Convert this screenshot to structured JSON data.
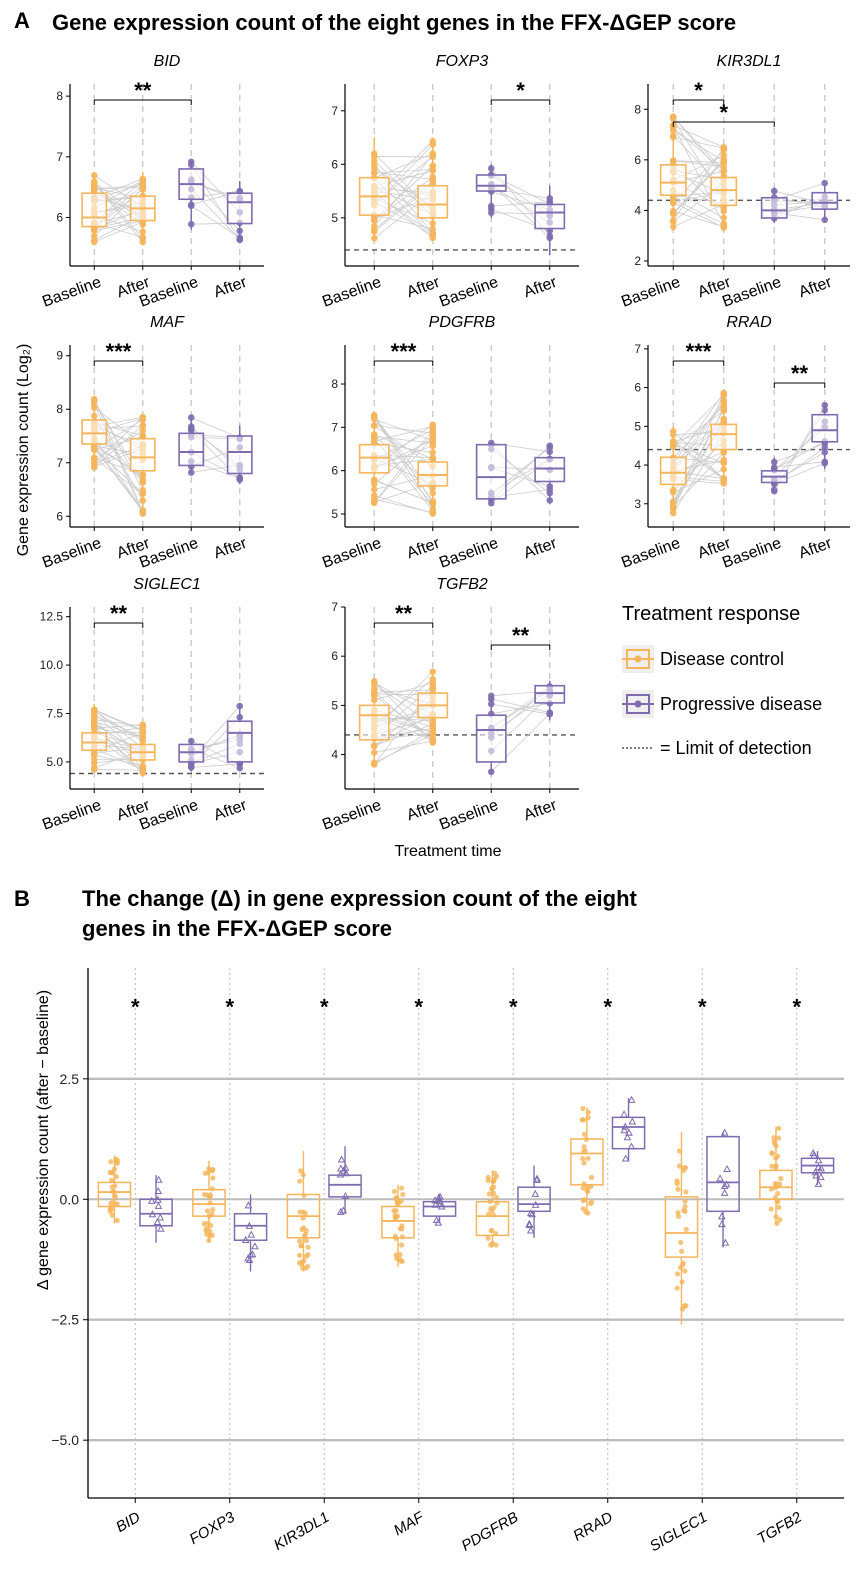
{
  "colors": {
    "disease_control": "#F5B55A",
    "progressive_disease": "#7E6BB0",
    "line": "#cccccc",
    "grid": "#bdbdbd"
  },
  "panel_a": {
    "letter": "A",
    "title": "Gene expression count of the eight genes in the FFX-ΔGEP score",
    "ylabel": "Gene expression count (Log₂)",
    "xlabel": "Treatment time",
    "legend": {
      "title": "Treatment response",
      "dc": "Disease control",
      "pd": "Progressive disease",
      "lod": "= Limit of detection"
    }
  },
  "panel_b": {
    "letter": "B",
    "title_line1": "The change (Δ) in gene expression count of the eight",
    "title_line2": "genes in the FFX-ΔGEP score",
    "ylabel": "Δ gene expression count (after − baseline)"
  },
  "chart_data": [
    {
      "type": "box",
      "panel": "A",
      "categories": [
        "Baseline",
        "After",
        "Baseline",
        "After"
      ],
      "groups": [
        "Disease control",
        "Disease control",
        "Progressive disease",
        "Progressive disease"
      ],
      "genes": [
        {
          "name": "BID",
          "ylim": [
            5.2,
            8.2
          ],
          "ticks": [
            "6",
            "7",
            "8"
          ],
          "tick_values": [
            6,
            7,
            8
          ],
          "lod": null,
          "boxes": [
            [
              5.55,
              5.85,
              6.0,
              6.4,
              6.75
            ],
            [
              5.55,
              5.95,
              6.15,
              6.35,
              6.75
            ],
            [
              5.8,
              6.3,
              6.55,
              6.8,
              6.95
            ],
            [
              5.6,
              5.9,
              6.25,
              6.4,
              6.6
            ]
          ],
          "sig": [
            {
              "from": 0,
              "to": 2,
              "label": "**"
            }
          ]
        },
        {
          "name": "FOXP3",
          "ylim": [
            4.1,
            7.5
          ],
          "ticks": [
            "5",
            "6",
            "7"
          ],
          "tick_values": [
            5,
            6,
            7
          ],
          "lod": 4.4,
          "boxes": [
            [
              4.6,
              5.05,
              5.4,
              5.75,
              6.5
            ],
            [
              4.6,
              5.0,
              5.25,
              5.6,
              6.5
            ],
            [
              5.0,
              5.5,
              5.6,
              5.8,
              6.0
            ],
            [
              4.3,
              4.8,
              5.1,
              5.25,
              5.6
            ]
          ],
          "sig": [
            {
              "from": 2,
              "to": 3,
              "label": "*"
            }
          ]
        },
        {
          "name": "KIR3DL1",
          "ylim": [
            1.8,
            9.0
          ],
          "ticks": [
            "2",
            "4",
            "6",
            "8"
          ],
          "tick_values": [
            2,
            4,
            6,
            8
          ],
          "lod": 4.4,
          "boxes": [
            [
              3.2,
              4.6,
              5.1,
              5.8,
              7.8
            ],
            [
              3.3,
              4.2,
              4.8,
              5.3,
              6.5
            ],
            [
              3.5,
              3.7,
              4.0,
              4.5,
              4.9
            ],
            [
              3.6,
              4.05,
              4.3,
              4.7,
              5.1
            ]
          ],
          "sig": [
            {
              "from": 0,
              "to": 1,
              "label": "*"
            },
            {
              "from": 0,
              "to": 2,
              "label": "*"
            }
          ]
        },
        {
          "name": "MAF",
          "ylim": [
            5.8,
            9.2
          ],
          "ticks": [
            "6",
            "7",
            "8",
            "9"
          ],
          "tick_values": [
            6,
            7,
            8,
            9
          ],
          "lod": null,
          "boxes": [
            [
              6.9,
              7.35,
              7.55,
              7.8,
              8.2
            ],
            [
              6.0,
              6.85,
              7.1,
              7.45,
              7.9
            ],
            [
              6.8,
              6.95,
              7.2,
              7.55,
              7.9
            ],
            [
              6.6,
              6.8,
              7.2,
              7.5,
              7.7
            ]
          ],
          "sig": [
            {
              "from": 0,
              "to": 1,
              "label": "***"
            }
          ]
        },
        {
          "name": "PDGFRB",
          "ylim": [
            4.7,
            8.9
          ],
          "ticks": [
            "5",
            "6",
            "7",
            "8"
          ],
          "tick_values": [
            5,
            6,
            7,
            8
          ],
          "lod": null,
          "boxes": [
            [
              5.2,
              5.95,
              6.3,
              6.6,
              7.3
            ],
            [
              5.0,
              5.65,
              5.9,
              6.2,
              7.1
            ],
            [
              5.2,
              5.35,
              5.85,
              6.6,
              6.65
            ],
            [
              5.3,
              5.75,
              6.05,
              6.3,
              6.6
            ]
          ],
          "sig": [
            {
              "from": 0,
              "to": 1,
              "label": "***"
            }
          ]
        },
        {
          "name": "RRAD",
          "ylim": [
            2.4,
            7.1
          ],
          "ticks": [
            "3",
            "4",
            "5",
            "6",
            "7"
          ],
          "tick_values": [
            3,
            4,
            5,
            6,
            7
          ],
          "lod": 4.4,
          "boxes": [
            [
              2.7,
              3.5,
              3.8,
              4.2,
              5.0
            ],
            [
              3.5,
              4.4,
              4.8,
              5.05,
              5.9
            ],
            [
              3.3,
              3.55,
              3.7,
              3.85,
              4.2
            ],
            [
              3.9,
              4.6,
              4.9,
              5.3,
              5.6
            ]
          ],
          "sig": [
            {
              "from": 0,
              "to": 1,
              "label": "***"
            },
            {
              "from": 2,
              "to": 3,
              "label": "**"
            }
          ]
        },
        {
          "name": "SIGLEC1",
          "ylim": [
            3.6,
            13.0
          ],
          "ticks": [
            "5.0",
            "7.5",
            "10.0",
            "12.5"
          ],
          "tick_values": [
            5,
            7.5,
            10,
            12.5
          ],
          "lod": 4.4,
          "boxes": [
            [
              4.5,
              5.6,
              6.0,
              6.5,
              8.0
            ],
            [
              4.4,
              5.1,
              5.5,
              5.9,
              7.0
            ],
            [
              4.5,
              5.0,
              5.5,
              5.9,
              6.2
            ],
            [
              4.6,
              5.0,
              6.5,
              7.1,
              8.0
            ]
          ],
          "sig": [
            {
              "from": 0,
              "to": 1,
              "label": "**"
            }
          ]
        },
        {
          "name": "TGFB2",
          "ylim": [
            3.3,
            7.0
          ],
          "ticks": [
            "4",
            "5",
            "6",
            "7"
          ],
          "tick_values": [
            4,
            5,
            6,
            7
          ],
          "lod": 4.4,
          "boxes": [
            [
              3.8,
              4.3,
              4.8,
              5.0,
              5.5
            ],
            [
              4.2,
              4.75,
              5.0,
              5.25,
              5.7
            ],
            [
              3.6,
              3.85,
              4.5,
              4.8,
              5.2
            ],
            [
              4.7,
              5.05,
              5.25,
              5.4,
              5.5
            ]
          ],
          "sig": [
            {
              "from": 0,
              "to": 1,
              "label": "**"
            },
            {
              "from": 2,
              "to": 3,
              "label": "**"
            }
          ]
        }
      ]
    },
    {
      "type": "box",
      "panel": "B",
      "categories": [
        "BID",
        "FOXP3",
        "KIR3DL1",
        "MAF",
        "PDGFRB",
        "RRAD",
        "SIGLEC1",
        "TGFB2"
      ],
      "ylim": [
        -6.2,
        4.8
      ],
      "ticks": [
        "2.5",
        "0.0",
        "−2.5",
        "−5.0"
      ],
      "tick_values": [
        2.5,
        0,
        -2.5,
        -5
      ],
      "significance": [
        "*",
        "*",
        "*",
        "*",
        "*",
        "*",
        "*",
        "*"
      ],
      "series": [
        {
          "name": "Disease control",
          "boxes": [
            [
              -0.5,
              -0.15,
              0.15,
              0.35,
              0.9
            ],
            [
              -0.9,
              -0.35,
              -0.1,
              0.2,
              0.8
            ],
            [
              -1.5,
              -0.8,
              -0.35,
              0.1,
              1.0
            ],
            [
              -1.4,
              -0.8,
              -0.45,
              -0.15,
              0.3
            ],
            [
              -1.0,
              -0.75,
              -0.35,
              -0.05,
              0.6
            ],
            [
              -0.3,
              0.3,
              0.95,
              1.25,
              1.9
            ],
            [
              -2.6,
              -1.2,
              -0.7,
              0.05,
              1.4
            ],
            [
              -0.5,
              0.0,
              0.25,
              0.6,
              1.5
            ]
          ]
        },
        {
          "name": "Progressive disease",
          "boxes": [
            [
              -0.9,
              -0.55,
              -0.3,
              0.0,
              0.5
            ],
            [
              -1.5,
              -0.85,
              -0.55,
              -0.3,
              0.1
            ],
            [
              -0.3,
              0.05,
              0.3,
              0.5,
              1.1
            ],
            [
              -0.5,
              -0.35,
              -0.15,
              -0.05,
              0.1
            ],
            [
              -0.8,
              -0.25,
              -0.1,
              0.25,
              0.7
            ],
            [
              0.8,
              1.05,
              1.5,
              1.7,
              2.1
            ],
            [
              -1.0,
              -0.25,
              0.35,
              1.3,
              1.4
            ],
            [
              0.3,
              0.55,
              0.7,
              0.85,
              1.0
            ]
          ]
        }
      ]
    }
  ]
}
